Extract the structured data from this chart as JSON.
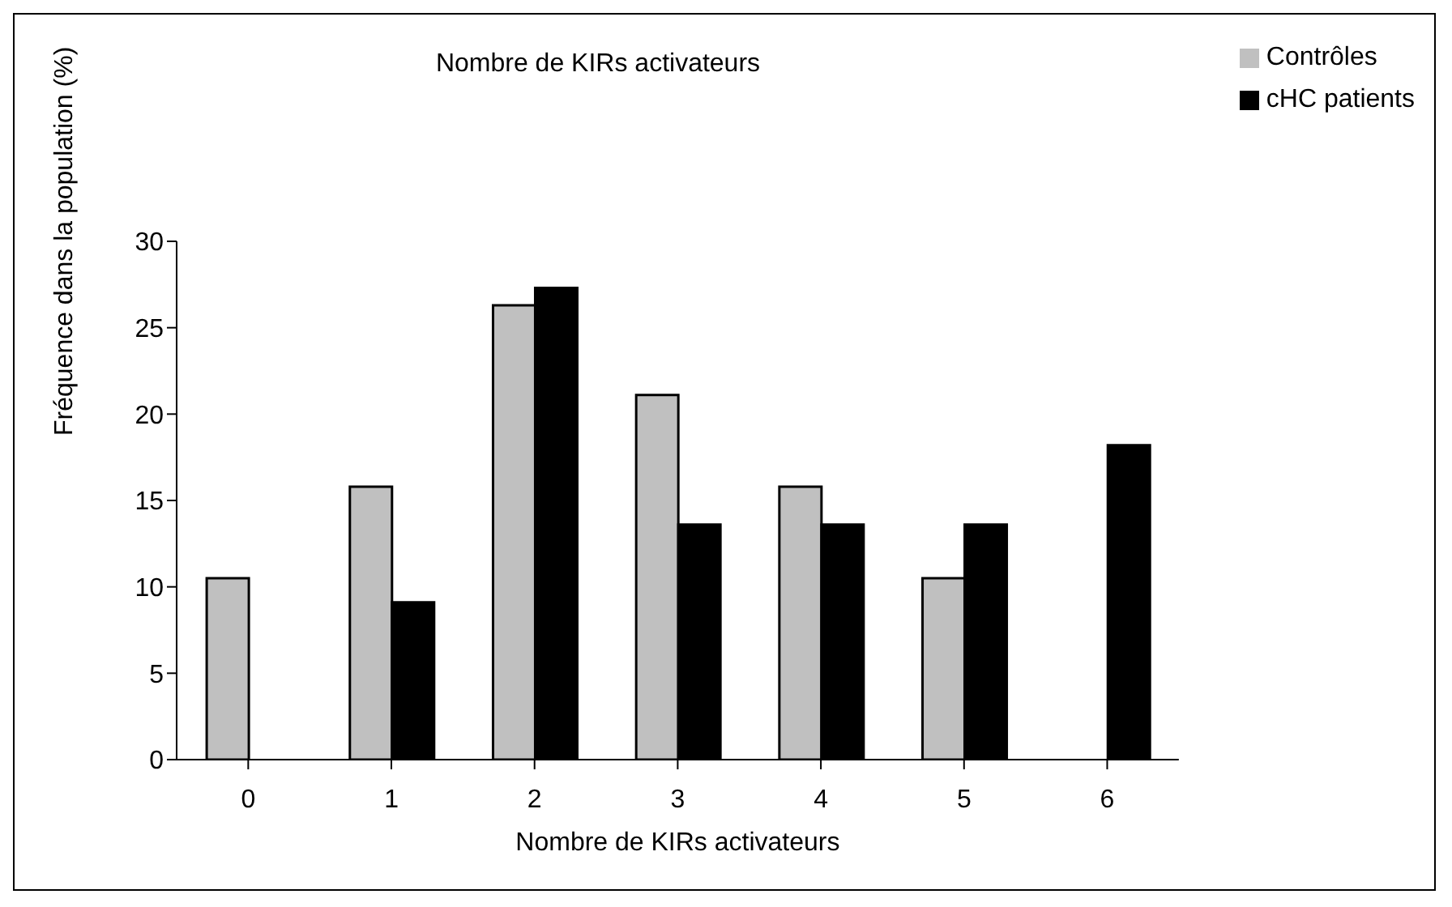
{
  "chart_data": {
    "type": "bar",
    "title": "Nombre de KIRs activateurs",
    "xlabel": "Nombre de KIRs activateurs",
    "ylabel": "Fréquence dans la population (%)",
    "categories": [
      "0",
      "1",
      "2",
      "3",
      "4",
      "5",
      "6"
    ],
    "series": [
      {
        "name": "Contrôles",
        "color": "#c0c0c0",
        "values": [
          10.5,
          15.8,
          26.3,
          21.1,
          15.8,
          10.5,
          null
        ]
      },
      {
        "name": "cHC patients",
        "color": "#000000",
        "values": [
          null,
          9.1,
          27.3,
          13.6,
          13.6,
          13.6,
          18.2
        ]
      }
    ],
    "ylim": [
      0,
      30
    ],
    "yticks": [
      0,
      5,
      10,
      15,
      20,
      25,
      30
    ],
    "grid": false,
    "legend": "top right"
  }
}
